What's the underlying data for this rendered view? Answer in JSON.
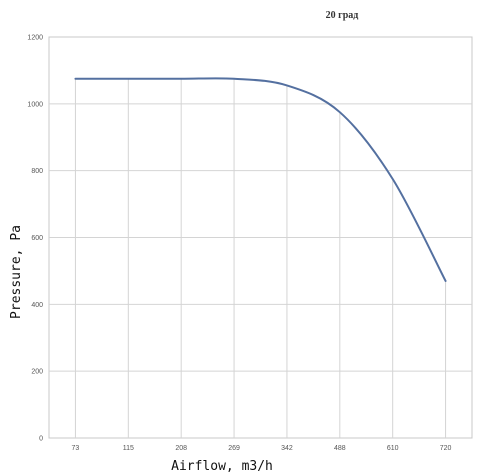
{
  "chart_data": {
    "type": "line",
    "title": "20 град",
    "xlabel": "Airflow, m3/h",
    "ylabel": "Pressure, Pa",
    "categories": [
      "73",
      "115",
      "208",
      "269",
      "342",
      "488",
      "610",
      "720"
    ],
    "series": [
      {
        "values": [
          1075,
          1075,
          1075,
          1075,
          1055,
          975,
          775,
          470
        ]
      }
    ],
    "ylim": [
      0,
      1200
    ],
    "yticks": [
      0,
      200,
      400,
      600,
      800,
      1000,
      1200
    ],
    "grid": true,
    "line_color": "#5470a0"
  }
}
